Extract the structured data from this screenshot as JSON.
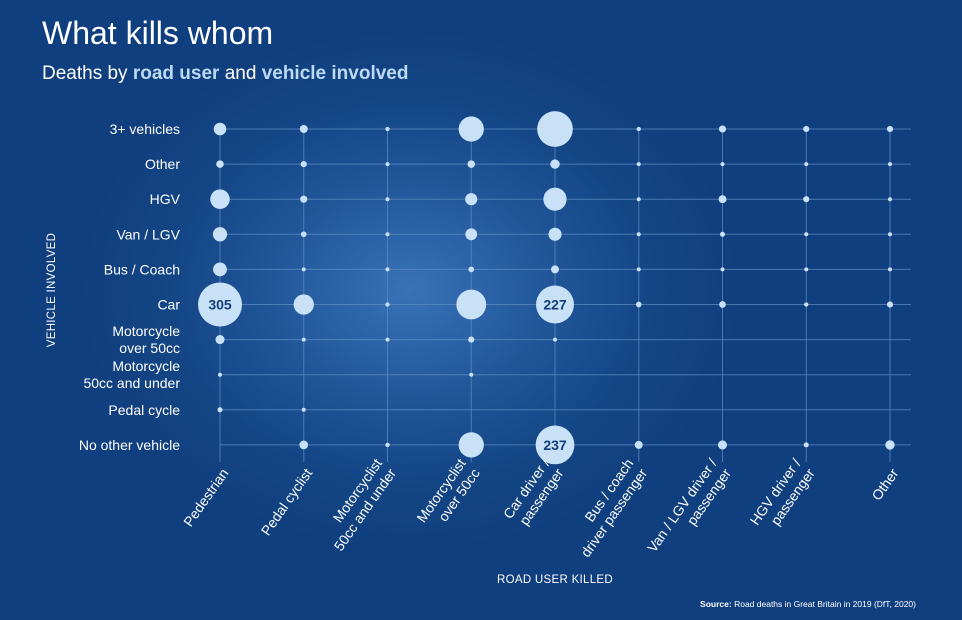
{
  "chart_data": {
    "type": "bubble-matrix",
    "title": "What kills whom",
    "subtitle": {
      "prefix": "Deaths by",
      "highlight1": "road user",
      "middle": "and",
      "highlight2": "vehicle involved"
    },
    "xlabel": "ROAD USER KILLED",
    "ylabel": "VEHICLE INVOLVED",
    "x_categories": [
      [
        "Pedestrian"
      ],
      [
        "Pedal cyclist"
      ],
      [
        "Motorcyclist",
        "50cc and under"
      ],
      [
        "Motorcyclist",
        "over 50cc"
      ],
      [
        "Car driver /",
        "passenger"
      ],
      [
        "Bus / coach",
        "driver passenger"
      ],
      [
        "Van / LGV driver /",
        "passenger"
      ],
      [
        "HGV driver /",
        "passenger"
      ],
      [
        "Other"
      ]
    ],
    "y_categories": [
      [
        "3+ vehicles"
      ],
      [
        "Other"
      ],
      [
        "HGV"
      ],
      [
        "Van / LGV"
      ],
      [
        "Bus / Coach"
      ],
      [
        "Car"
      ],
      [
        "Motorcycle",
        "over 50cc"
      ],
      [
        "Motorcycle",
        "50cc and under"
      ],
      [
        "Pedal cycle"
      ],
      [
        "No other vehicle"
      ]
    ],
    "values": [
      [
        25,
        10,
        3,
        100,
        200,
        3,
        8,
        6,
        6
      ],
      [
        9,
        6,
        1,
        9,
        14,
        1,
        2,
        1,
        1
      ],
      [
        60,
        8,
        2,
        23,
        85,
        1,
        10,
        6,
        1
      ],
      [
        32,
        5,
        1,
        22,
        27,
        1,
        4,
        1,
        1
      ],
      [
        30,
        2,
        1,
        5,
        10,
        1,
        1,
        1,
        1
      ],
      [
        305,
        65,
        3,
        140,
        227,
        5,
        7,
        3,
        6
      ],
      [
        13,
        1,
        1,
        6,
        1,
        0,
        0,
        0,
        0
      ],
      [
        1,
        0,
        0,
        1,
        0,
        0,
        0,
        0,
        0
      ],
      [
        4,
        1,
        0,
        0,
        0,
        0,
        0,
        0,
        0
      ],
      [
        0,
        12,
        3,
        100,
        237,
        10,
        13,
        4,
        14
      ]
    ],
    "labeled_values": [
      "305",
      "227",
      "237"
    ],
    "source": {
      "label": "Source:",
      "text": "Road deaths in Great Britain in 2019 (DfT, 2020)"
    },
    "colors": {
      "bubble": "#c9e1f7",
      "label_text": "#123f7c",
      "grid": "#5c8cc4"
    }
  }
}
